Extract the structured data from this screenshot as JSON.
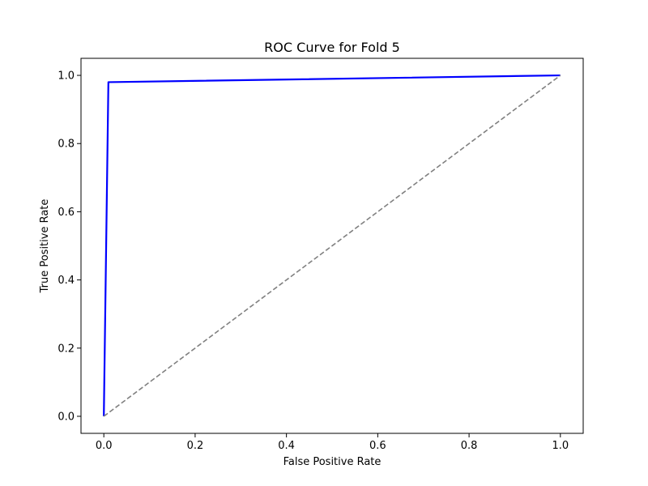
{
  "chart_data": {
    "type": "line",
    "title": "ROC Curve for Fold 5",
    "xlabel": "False Positive Rate",
    "ylabel": "True Positive Rate",
    "xlim": [
      -0.05,
      1.05
    ],
    "ylim": [
      -0.05,
      1.05
    ],
    "xticks": [
      0.0,
      0.2,
      0.4,
      0.6,
      0.8,
      1.0
    ],
    "yticks": [
      0.0,
      0.2,
      0.4,
      0.6,
      0.8,
      1.0
    ],
    "xtick_labels": [
      "0.0",
      "0.2",
      "0.4",
      "0.6",
      "0.8",
      "1.0"
    ],
    "ytick_labels": [
      "0.0",
      "0.2",
      "0.4",
      "0.6",
      "0.8",
      "1.0"
    ],
    "grid": false,
    "series": [
      {
        "color": "#0000ff",
        "style": "solid",
        "x": [
          0.0,
          0.01,
          1.0
        ],
        "y": [
          0.0,
          0.98,
          1.0
        ]
      },
      {
        "color": "#808080",
        "style": "dashed",
        "x": [
          0.0,
          1.0
        ],
        "y": [
          0.0,
          1.0
        ]
      }
    ]
  }
}
